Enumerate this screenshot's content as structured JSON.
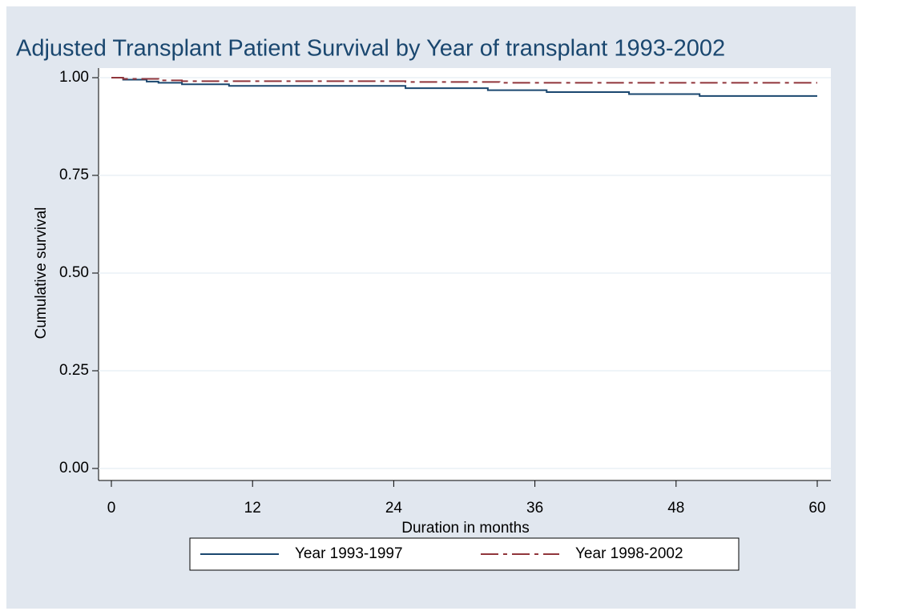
{
  "chart_data": {
    "type": "line",
    "step": "post",
    "title": "Adjusted Transplant Patient Survival by Year of transplant 1993-2002",
    "xlabel": "Duration in months",
    "ylabel": "Cumulative survival",
    "series": [
      {
        "name": "Year 1993-1997",
        "color": "#1a476f",
        "dash": false,
        "x": [
          0,
          1,
          3,
          4,
          6,
          10,
          25,
          32,
          37,
          44,
          50,
          60
        ],
        "values": [
          1.0,
          0.995,
          0.99,
          0.987,
          0.983,
          0.979,
          0.973,
          0.968,
          0.963,
          0.958,
          0.953,
          0.953
        ]
      },
      {
        "name": "Year 1998-2002",
        "color": "#90353b",
        "dash": true,
        "x": [
          0,
          1,
          4,
          6,
          25,
          33,
          60
        ],
        "values": [
          1.0,
          0.997,
          0.993,
          0.991,
          0.989,
          0.987,
          0.987
        ]
      }
    ],
    "xlim": [
      0,
      60
    ],
    "xticks": [
      0,
      12,
      24,
      36,
      48,
      60
    ],
    "ylim": [
      0,
      1
    ],
    "yticks": [
      {
        "value": 0,
        "label": "0.00"
      },
      {
        "value": 0.25,
        "label": "0.25"
      },
      {
        "value": 0.5,
        "label": "0.50"
      },
      {
        "value": 0.75,
        "label": "0.75"
      },
      {
        "value": 1,
        "label": "1.00"
      }
    ],
    "grid": true,
    "legend": "bottom"
  }
}
